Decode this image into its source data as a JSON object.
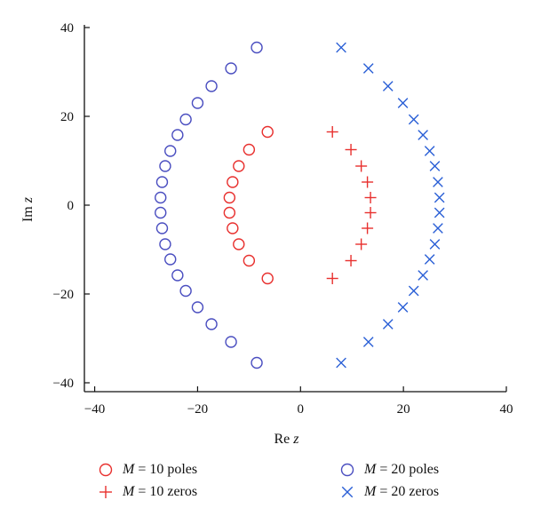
{
  "chart_data": {
    "type": "scatter",
    "title": "",
    "xlabel": {
      "prefix": "Re",
      "var": "z"
    },
    "ylabel": {
      "prefix": "Im",
      "var": "z"
    },
    "xlim": [
      -42,
      40
    ],
    "ylim": [
      -42,
      40
    ],
    "xticks": [
      -40,
      -20,
      0,
      20,
      40
    ],
    "yticks": [
      -40,
      -20,
      0,
      20,
      40
    ],
    "xtick_labels": [
      "−40",
      "−20",
      "0",
      "20",
      "40"
    ],
    "ytick_labels": [
      "−40",
      "−20",
      "0",
      "20",
      "40"
    ],
    "grid": false,
    "legend_position": "bottom",
    "series": [
      {
        "name": "M = 10 poles",
        "marker": "circle",
        "color": "#e8302e",
        "points": [
          [
            -6.4,
            16.5
          ],
          [
            -10.0,
            12.5
          ],
          [
            -12.0,
            8.8
          ],
          [
            -13.2,
            5.2
          ],
          [
            -13.8,
            1.7
          ],
          [
            -13.8,
            -1.7
          ],
          [
            -13.2,
            -5.2
          ],
          [
            -12.0,
            -8.8
          ],
          [
            -10.0,
            -12.5
          ],
          [
            -6.4,
            -16.5
          ]
        ]
      },
      {
        "name": "M = 10 zeros",
        "marker": "plus",
        "color": "#e8302e",
        "points": [
          [
            6.2,
            16.5
          ],
          [
            9.8,
            12.5
          ],
          [
            11.8,
            8.8
          ],
          [
            13.0,
            5.2
          ],
          [
            13.6,
            1.7
          ],
          [
            13.6,
            -1.7
          ],
          [
            13.0,
            -5.2
          ],
          [
            11.8,
            -8.8
          ],
          [
            9.8,
            -12.5
          ],
          [
            6.2,
            -16.5
          ]
        ]
      },
      {
        "name": "M = 20 poles",
        "marker": "circle",
        "color": "#4a4ec0",
        "points": [
          [
            -8.5,
            35.5
          ],
          [
            -13.5,
            30.8
          ],
          [
            -17.3,
            26.8
          ],
          [
            -20.0,
            23.0
          ],
          [
            -22.3,
            19.3
          ],
          [
            -23.9,
            15.8
          ],
          [
            -25.3,
            12.2
          ],
          [
            -26.3,
            8.8
          ],
          [
            -26.9,
            5.2
          ],
          [
            -27.2,
            1.7
          ],
          [
            -27.2,
            -1.7
          ],
          [
            -26.9,
            -5.2
          ],
          [
            -26.3,
            -8.8
          ],
          [
            -25.3,
            -12.2
          ],
          [
            -23.9,
            -15.8
          ],
          [
            -22.3,
            -19.3
          ],
          [
            -20.0,
            -23.0
          ],
          [
            -17.3,
            -26.8
          ],
          [
            -13.5,
            -30.8
          ],
          [
            -8.5,
            -35.5
          ]
        ]
      },
      {
        "name": "M = 20 zeros",
        "marker": "x",
        "color": "#2a5fd6",
        "points": [
          [
            7.9,
            35.5
          ],
          [
            13.2,
            30.8
          ],
          [
            17.0,
            26.8
          ],
          [
            19.9,
            23.0
          ],
          [
            22.0,
            19.3
          ],
          [
            23.8,
            15.8
          ],
          [
            25.1,
            12.2
          ],
          [
            26.1,
            8.8
          ],
          [
            26.7,
            5.2
          ],
          [
            27.0,
            1.7
          ],
          [
            27.0,
            -1.7
          ],
          [
            26.7,
            -5.2
          ],
          [
            26.1,
            -8.8
          ],
          [
            25.1,
            -12.2
          ],
          [
            23.8,
            -15.8
          ],
          [
            22.0,
            -19.3
          ],
          [
            19.9,
            -23.0
          ],
          [
            17.0,
            -26.8
          ],
          [
            13.2,
            -30.8
          ],
          [
            7.9,
            -35.5
          ]
        ]
      }
    ]
  },
  "legend": {
    "items": [
      {
        "marker": "circle",
        "color": "#e8302e",
        "var": "M",
        "rest": " = 10 poles"
      },
      {
        "marker": "plus",
        "color": "#e8302e",
        "var": "M",
        "rest": " = 10 zeros"
      },
      {
        "marker": "circle",
        "color": "#4a4ec0",
        "var": "M",
        "rest": " = 20 poles"
      },
      {
        "marker": "x",
        "color": "#2a5fd6",
        "var": "M",
        "rest": " = 20 zeros"
      }
    ]
  }
}
